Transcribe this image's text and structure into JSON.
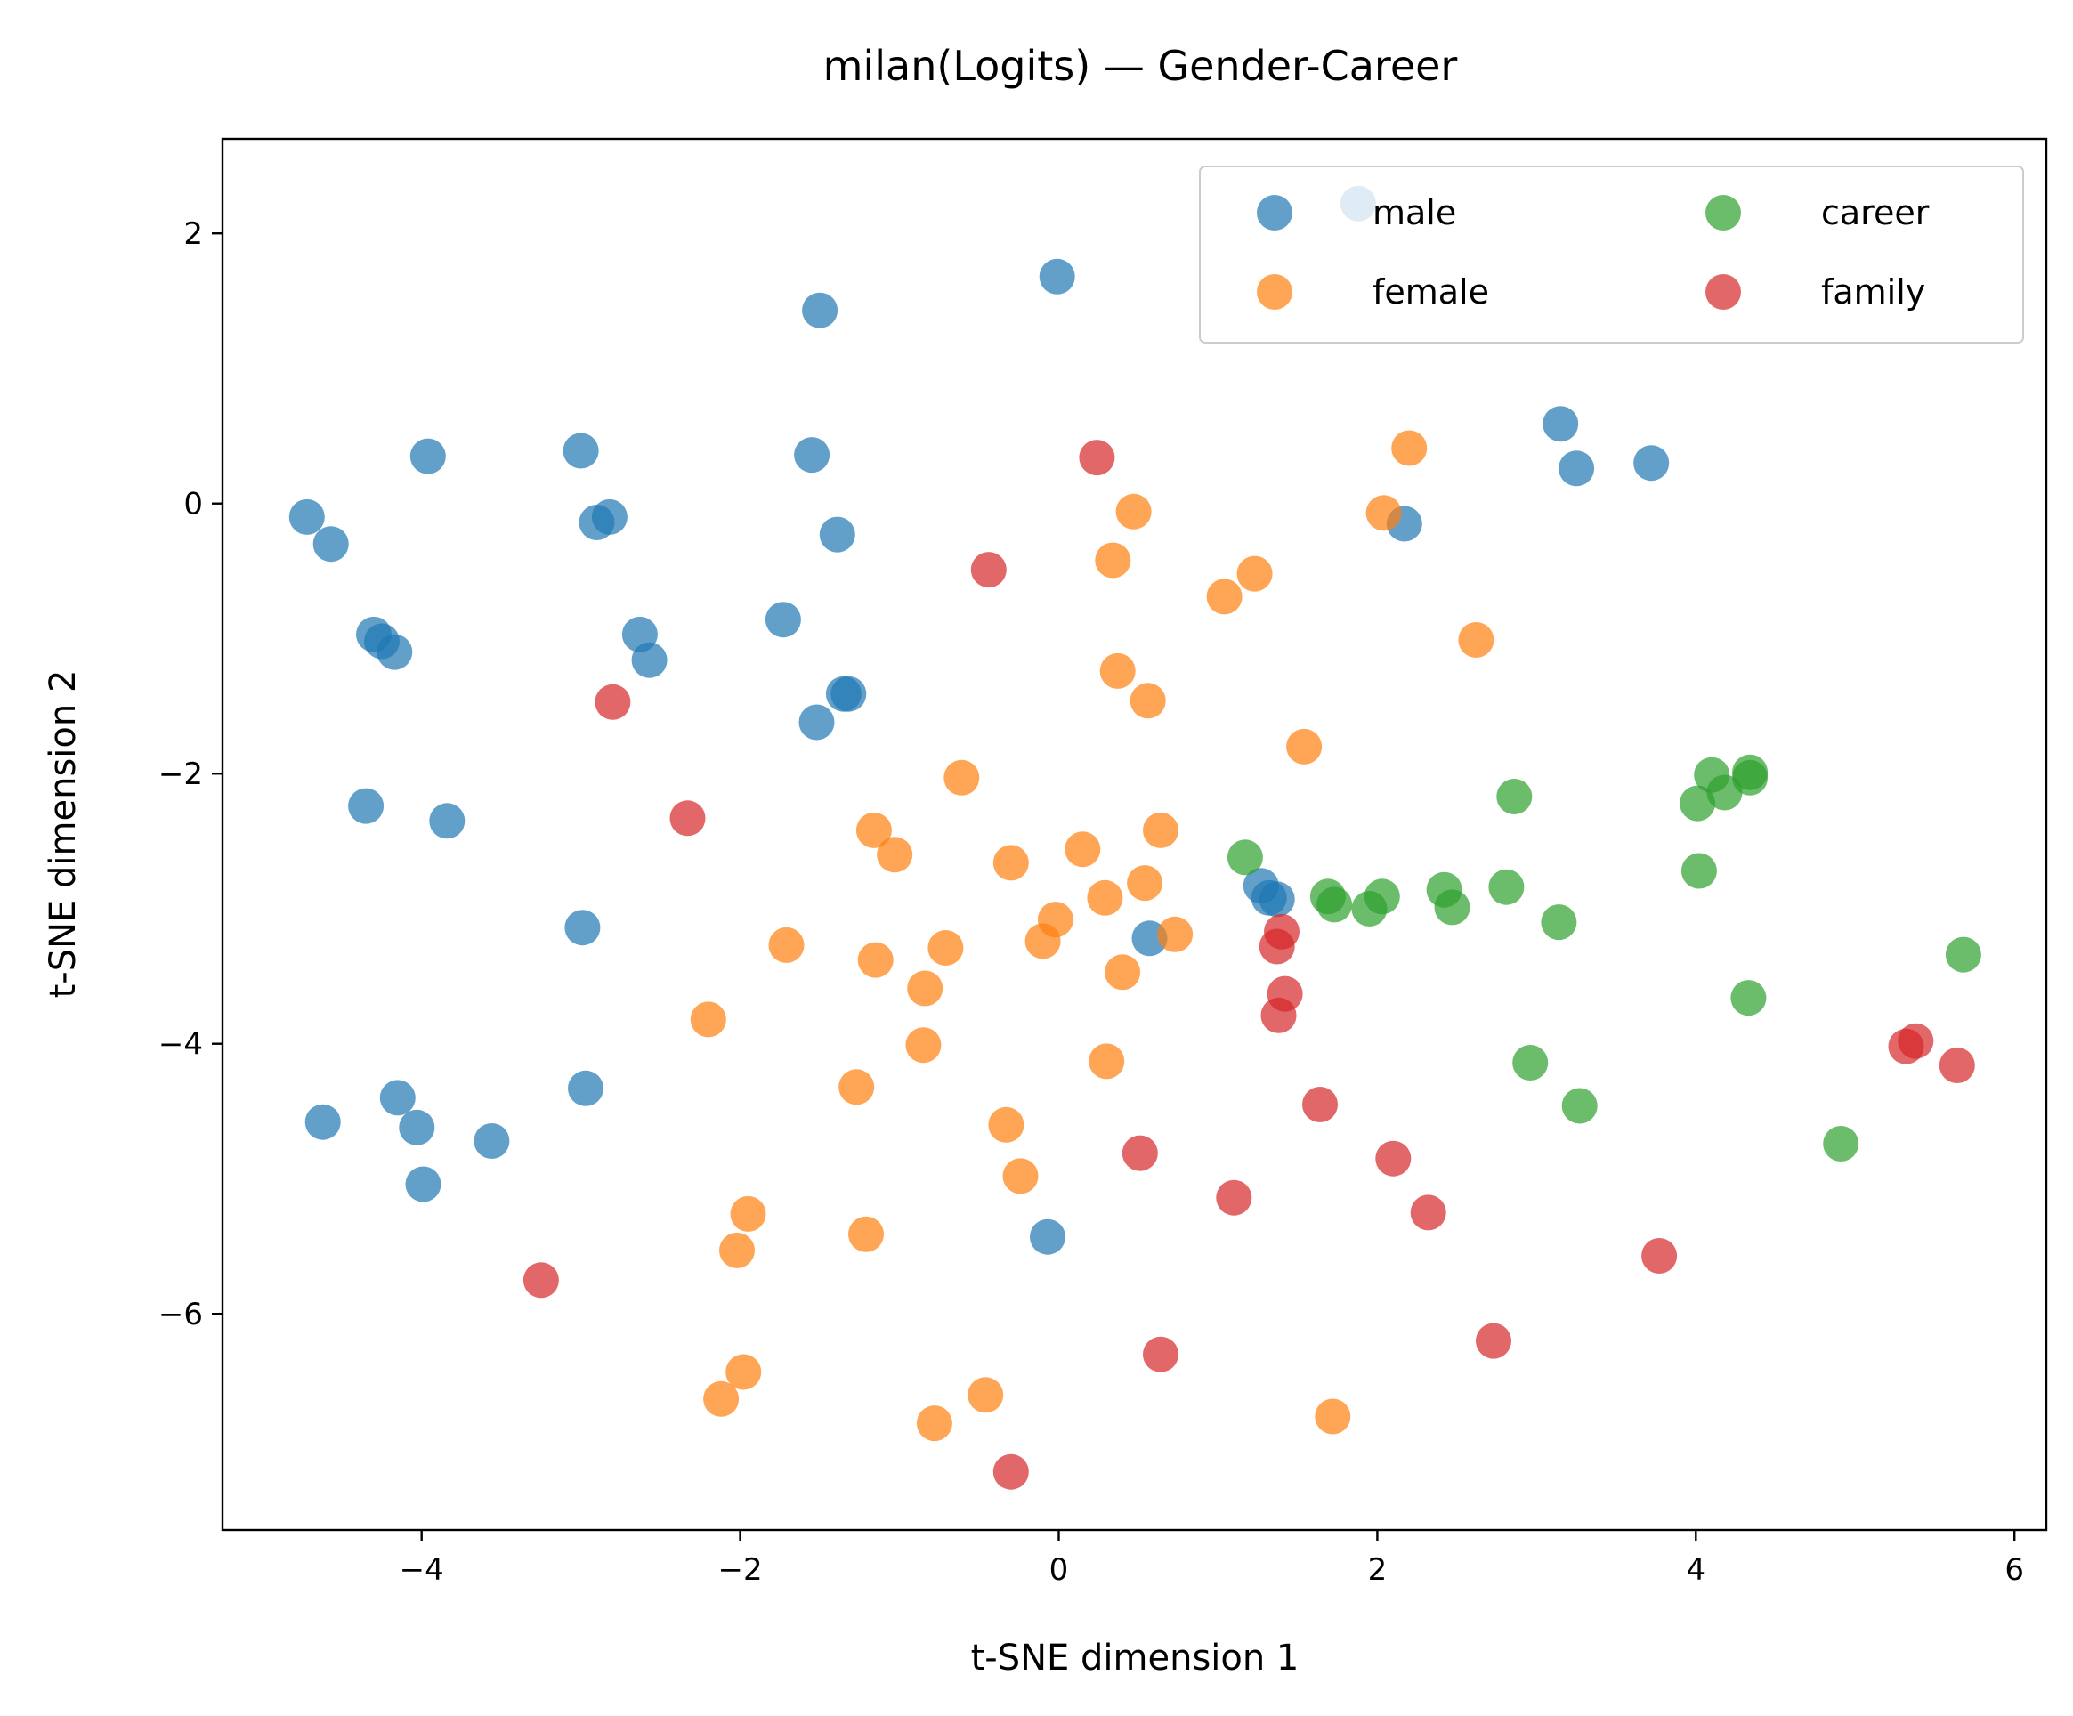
{
  "chart_data": {
    "type": "scatter",
    "title": "milan(Logits) — Gender-Career",
    "xlabel": "t-SNE dimension 1",
    "ylabel": "t-SNE dimension 2",
    "xlim": [
      -5.25,
      6.2
    ],
    "ylim": [
      -7.6,
      2.7
    ],
    "xticks": [
      -4,
      -2,
      0,
      2,
      4,
      6
    ],
    "yticks": [
      -6,
      -4,
      -2,
      0,
      2
    ],
    "grid": false,
    "legend": {
      "placement": "top-right",
      "columns": 2
    },
    "series": [
      {
        "name": "male",
        "color": "#1f77b4",
        "points": [
          [
            1.88,
            2.22
          ],
          [
            -0.01,
            1.68
          ],
          [
            -1.5,
            1.43
          ],
          [
            -3.96,
            0.35
          ],
          [
            -3.0,
            0.39
          ],
          [
            -1.55,
            0.36
          ],
          [
            -4.72,
            -0.1
          ],
          [
            -4.57,
            -0.3
          ],
          [
            -2.9,
            -0.14
          ],
          [
            -2.82,
            -0.1
          ],
          [
            -1.39,
            -0.23
          ],
          [
            -4.3,
            -0.97
          ],
          [
            -4.25,
            -1.02
          ],
          [
            -4.17,
            -1.1
          ],
          [
            -2.63,
            -0.97
          ],
          [
            -2.57,
            -1.16
          ],
          [
            -1.73,
            -0.86
          ],
          [
            -1.35,
            -1.41
          ],
          [
            -1.32,
            -1.41
          ],
          [
            -1.52,
            -1.62
          ],
          [
            3.15,
            0.59
          ],
          [
            3.25,
            0.26
          ],
          [
            3.72,
            0.3
          ],
          [
            2.17,
            -0.15
          ],
          [
            -4.35,
            -2.24
          ],
          [
            -3.84,
            -2.35
          ],
          [
            -2.99,
            -3.14
          ],
          [
            1.27,
            -2.83
          ],
          [
            1.32,
            -2.92
          ],
          [
            1.37,
            -2.93
          ],
          [
            0.57,
            -3.22
          ],
          [
            -2.97,
            -4.33
          ],
          [
            -4.62,
            -4.58
          ],
          [
            -4.15,
            -4.4
          ],
          [
            -4.03,
            -4.62
          ],
          [
            -3.56,
            -4.72
          ],
          [
            -3.99,
            -5.04
          ],
          [
            -0.07,
            -5.43
          ]
        ]
      },
      {
        "name": "female",
        "color": "#ff7f0e",
        "points": [
          [
            2.2,
            0.41
          ],
          [
            2.04,
            -0.07
          ],
          [
            0.47,
            -0.06
          ],
          [
            0.34,
            -0.42
          ],
          [
            1.23,
            -0.52
          ],
          [
            1.04,
            -0.69
          ],
          [
            2.62,
            -1.01
          ],
          [
            0.37,
            -1.24
          ],
          [
            0.56,
            -1.46
          ],
          [
            1.54,
            -1.8
          ],
          [
            -0.61,
            -2.03
          ],
          [
            -1.16,
            -2.42
          ],
          [
            -1.03,
            -2.6
          ],
          [
            0.15,
            -2.56
          ],
          [
            -0.3,
            -2.66
          ],
          [
            0.64,
            -2.42
          ],
          [
            0.54,
            -2.81
          ],
          [
            0.29,
            -2.92
          ],
          [
            -0.02,
            -3.08
          ],
          [
            -0.1,
            -3.24
          ],
          [
            0.73,
            -3.19
          ],
          [
            -1.71,
            -3.27
          ],
          [
            -1.15,
            -3.38
          ],
          [
            -0.71,
            -3.29
          ],
          [
            -0.84,
            -3.59
          ],
          [
            0.4,
            -3.47
          ],
          [
            -2.2,
            -3.82
          ],
          [
            -0.85,
            -4.01
          ],
          [
            0.3,
            -4.13
          ],
          [
            -1.27,
            -4.32
          ],
          [
            -0.33,
            -4.6
          ],
          [
            -0.24,
            -4.98
          ],
          [
            -1.95,
            -5.26
          ],
          [
            -2.02,
            -5.53
          ],
          [
            -1.21,
            -5.41
          ],
          [
            -1.98,
            -6.43
          ],
          [
            -2.12,
            -6.63
          ],
          [
            -0.46,
            -6.6
          ],
          [
            -0.78,
            -6.81
          ],
          [
            1.72,
            -6.76
          ]
        ]
      },
      {
        "name": "career",
        "color": "#2ca02c",
        "points": [
          [
            1.17,
            -2.62
          ],
          [
            1.69,
            -2.91
          ],
          [
            1.73,
            -2.97
          ],
          [
            1.95,
            -3.0
          ],
          [
            2.03,
            -2.91
          ],
          [
            2.42,
            -2.86
          ],
          [
            2.47,
            -2.99
          ],
          [
            2.81,
            -2.84
          ],
          [
            2.86,
            -2.17
          ],
          [
            3.14,
            -3.1
          ],
          [
            4.01,
            -2.22
          ],
          [
            4.1,
            -2.01
          ],
          [
            4.18,
            -2.14
          ],
          [
            4.34,
            -1.99
          ],
          [
            4.34,
            -2.03
          ],
          [
            4.02,
            -2.72
          ],
          [
            4.33,
            -3.66
          ],
          [
            5.68,
            -3.34
          ],
          [
            2.96,
            -4.14
          ],
          [
            3.27,
            -4.46
          ],
          [
            4.91,
            -4.74
          ]
        ]
      },
      {
        "name": "family",
        "color": "#d62728",
        "points": [
          [
            0.24,
            0.34
          ],
          [
            -0.44,
            -0.49
          ],
          [
            -2.8,
            -1.47
          ],
          [
            -2.33,
            -2.33
          ],
          [
            1.4,
            -3.17
          ],
          [
            1.37,
            -3.28
          ],
          [
            1.42,
            -3.63
          ],
          [
            1.38,
            -3.79
          ],
          [
            1.64,
            -4.45
          ],
          [
            0.51,
            -4.81
          ],
          [
            1.1,
            -5.14
          ],
          [
            2.1,
            -4.85
          ],
          [
            2.32,
            -5.25
          ],
          [
            -3.25,
            -5.75
          ],
          [
            0.64,
            -6.3
          ],
          [
            2.73,
            -6.2
          ],
          [
            3.77,
            -5.57
          ],
          [
            5.32,
            -4.02
          ],
          [
            5.38,
            -3.98
          ],
          [
            5.64,
            -4.16
          ],
          [
            -0.3,
            -7.17
          ]
        ]
      }
    ]
  }
}
